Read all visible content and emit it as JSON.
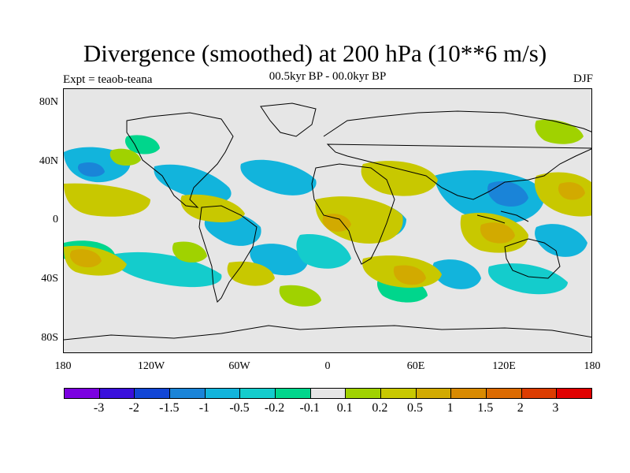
{
  "title": "Divergence (smoothed) at 200 hPa (10**6 m/s)",
  "subtitle": "00.5kyr BP - 00.0kyr BP",
  "experiment": "Expt = teaob-teana",
  "season": "DJF",
  "lat_labels": [
    "80N",
    "40N",
    "0",
    "40S",
    "80S"
  ],
  "lon_labels": [
    "180",
    "120W",
    "60W",
    "0",
    "60E",
    "120E",
    "180"
  ],
  "colorbar": {
    "colors": [
      "#7b00e0",
      "#3a10dc",
      "#1246d6",
      "#1a84d8",
      "#12b4dc",
      "#14cccc",
      "#00d68c",
      "#e6e6e6",
      "#a0d200",
      "#c8c800",
      "#d2aa00",
      "#d98a00",
      "#dc6a00",
      "#dc3c00",
      "#e00000"
    ],
    "labels": [
      "-3",
      "-2",
      "-1.5",
      "-1",
      "-0.5",
      "-0.2",
      "-0.1",
      "0.1",
      "0.2",
      "0.5",
      "1",
      "1.5",
      "2",
      "3"
    ]
  },
  "colors": {
    "cyan": "#12b4dc",
    "teal": "#14cccc",
    "green": "#00d68c",
    "blue": "#1a84d8",
    "lime": "#a0d200",
    "olive": "#c8c800",
    "orange": "#d2aa00",
    "darkorange": "#d98a00"
  }
}
